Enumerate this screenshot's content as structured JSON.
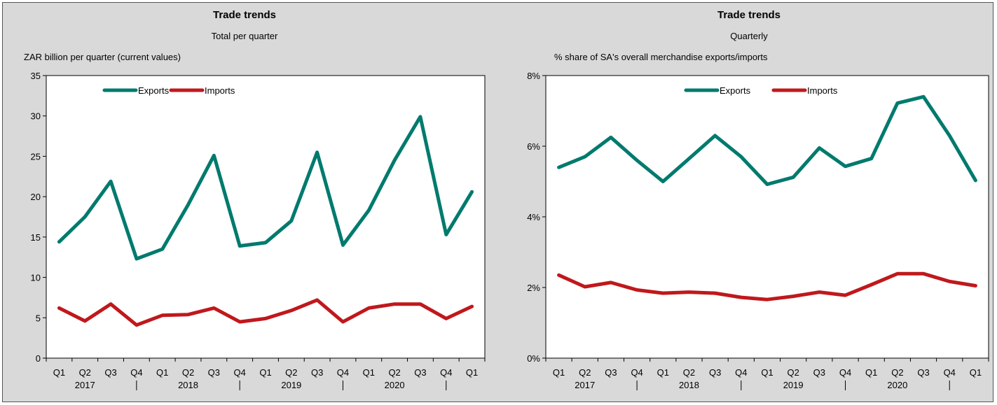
{
  "colors": {
    "exports": "#007a6e",
    "imports": "#c0181c",
    "background": "#d9d9d9",
    "plot": "#ffffff"
  },
  "chart_data": [
    {
      "type": "line",
      "title": "Trade trends",
      "subtitle": "Total per quarter",
      "ylabel": "ZAR billion per quarter (current values)",
      "xlabel": "",
      "categories": [
        "Q1",
        "Q2",
        "Q3",
        "Q4",
        "Q1",
        "Q2",
        "Q3",
        "Q4",
        "Q1",
        "Q2",
        "Q3",
        "Q4",
        "Q1",
        "Q2",
        "Q3",
        "Q4",
        "Q1"
      ],
      "years": [
        "2017",
        "2018",
        "2019",
        "2020"
      ],
      "ylim": [
        0,
        35
      ],
      "yticks": [
        0,
        5,
        10,
        15,
        20,
        25,
        30,
        35
      ],
      "ytick_labels": [
        "0",
        "5",
        "10",
        "15",
        "20",
        "25",
        "30",
        "35"
      ],
      "legend_position": "top-left",
      "grid": false,
      "series": [
        {
          "name": "Exports",
          "values": [
            14.4,
            17.5,
            21.9,
            12.3,
            13.5,
            19.0,
            25.1,
            13.9,
            14.3,
            17.0,
            25.5,
            14.0,
            18.3,
            24.5,
            29.9,
            15.3,
            20.6
          ]
        },
        {
          "name": "Imports",
          "values": [
            6.2,
            4.6,
            6.7,
            4.1,
            5.3,
            5.4,
            6.2,
            4.5,
            4.9,
            5.9,
            7.2,
            4.5,
            6.2,
            6.7,
            6.7,
            4.9,
            6.4
          ]
        }
      ]
    },
    {
      "type": "line",
      "title": "Trade trends",
      "subtitle": "Quarterly",
      "ylabel": "% share of SA's overall merchandise exports/imports",
      "xlabel": "",
      "categories": [
        "Q1",
        "Q2",
        "Q3",
        "Q4",
        "Q1",
        "Q2",
        "Q3",
        "Q4",
        "Q1",
        "Q2",
        "Q3",
        "Q4",
        "Q1",
        "Q2",
        "Q3",
        "Q4",
        "Q1"
      ],
      "years": [
        "2017",
        "2018",
        "2019",
        "2020"
      ],
      "ylim": [
        0,
        8
      ],
      "yticks": [
        0,
        2,
        4,
        6,
        8
      ],
      "ytick_labels": [
        "0%",
        "2%",
        "4%",
        "6%",
        "8%"
      ],
      "legend_position": "top-center",
      "grid": false,
      "series": [
        {
          "name": "Exports",
          "values": [
            5.4,
            5.7,
            6.25,
            5.6,
            5.0,
            5.65,
            6.3,
            5.7,
            4.92,
            5.12,
            5.95,
            5.43,
            5.65,
            7.22,
            7.4,
            6.3,
            5.03
          ]
        },
        {
          "name": "Imports",
          "values": [
            2.35,
            2.02,
            2.14,
            1.93,
            1.84,
            1.87,
            1.84,
            1.72,
            1.66,
            1.75,
            1.87,
            1.78,
            2.08,
            2.39,
            2.39,
            2.17,
            2.05
          ]
        }
      ]
    }
  ]
}
